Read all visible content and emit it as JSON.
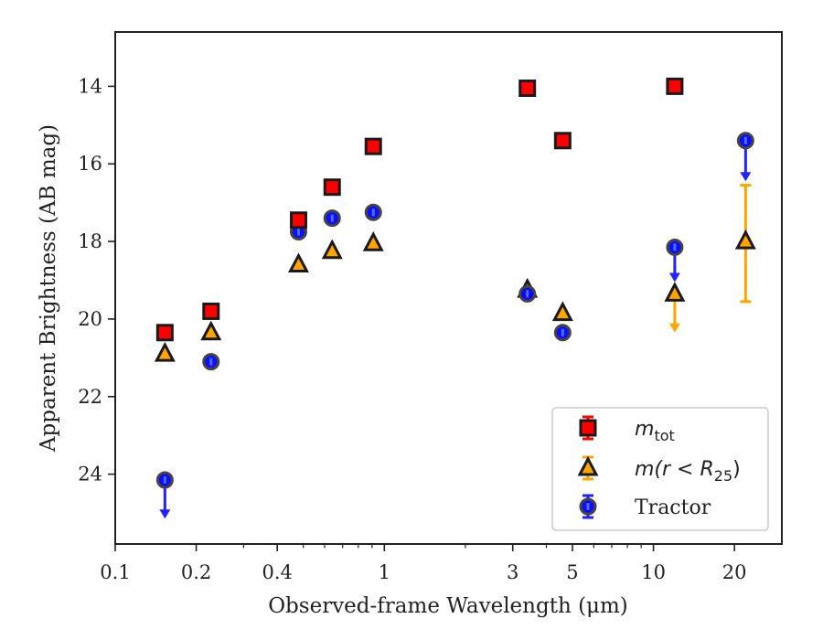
{
  "chart_data": {
    "type": "scatter",
    "xlabel": "Observed-frame Wavelength (μm)",
    "ylabel": "Apparent Brightness (AB mag)",
    "xscale": "log",
    "xlim": [
      0.1,
      30
    ],
    "ylim": [
      25.8,
      12.6
    ],
    "y_inverted": true,
    "x_ticks": [
      0.1,
      0.2,
      0.4,
      1,
      3,
      5,
      10,
      20
    ],
    "x_tick_labels": [
      "0.1",
      "0.2",
      "0.4",
      "1",
      "3",
      "5",
      "10",
      "20"
    ],
    "y_ticks": [
      14,
      16,
      18,
      20,
      22,
      24
    ],
    "y_tick_labels": [
      "14",
      "16",
      "18",
      "20",
      "22",
      "24"
    ],
    "legend_position": "lower right",
    "series": [
      {
        "name": "m_tot",
        "marker": "square",
        "color": "#ff0000",
        "edge_color": "#1a1a1a",
        "points": [
          {
            "x": 0.153,
            "y": 20.35
          },
          {
            "x": 0.227,
            "y": 19.8
          },
          {
            "x": 0.48,
            "y": 17.45
          },
          {
            "x": 0.64,
            "y": 16.6
          },
          {
            "x": 0.91,
            "y": 15.55
          },
          {
            "x": 3.4,
            "y": 14.05
          },
          {
            "x": 4.6,
            "y": 15.4
          },
          {
            "x": 12.0,
            "y": 14.0
          }
        ]
      },
      {
        "name": "m(r < R25)",
        "marker": "triangle",
        "color": "#ffa500",
        "edge_color": "#1a1a1a",
        "points": [
          {
            "x": 0.153,
            "y": 20.9
          },
          {
            "x": 0.227,
            "y": 20.35
          },
          {
            "x": 0.48,
            "y": 18.6
          },
          {
            "x": 0.64,
            "y": 18.25
          },
          {
            "x": 0.91,
            "y": 18.05
          },
          {
            "x": 3.4,
            "y": 19.25
          },
          {
            "x": 4.6,
            "y": 19.85
          },
          {
            "x": 12.0,
            "y": 19.35,
            "upper_limit": true,
            "limit_to": 20.3
          },
          {
            "x": 22.0,
            "y": 18.0,
            "err_low": 16.55,
            "err_high": 19.55
          }
        ]
      },
      {
        "name": "Tractor",
        "marker": "circle",
        "color": "#0000ff",
        "edge_color": "#444444",
        "points": [
          {
            "x": 0.153,
            "y": 24.15,
            "upper_limit": true,
            "limit_to": 25.1
          },
          {
            "x": 0.227,
            "y": 21.1
          },
          {
            "x": 0.48,
            "y": 17.75
          },
          {
            "x": 0.64,
            "y": 17.4
          },
          {
            "x": 0.91,
            "y": 17.25
          },
          {
            "x": 3.4,
            "y": 19.35
          },
          {
            "x": 4.6,
            "y": 20.35
          },
          {
            "x": 12.0,
            "y": 18.15,
            "upper_limit": true,
            "limit_to": 19.0
          },
          {
            "x": 22.0,
            "y": 15.4,
            "upper_limit": true,
            "limit_to": 16.4
          }
        ]
      }
    ]
  },
  "legend": {
    "entries": [
      {
        "label_main": "m",
        "label_sub": "tot",
        "rest": ""
      },
      {
        "label_main": "m(r < R",
        "label_sub": "25",
        "rest": ")"
      },
      {
        "label_main": "Tractor",
        "label_sub": "",
        "rest": ""
      }
    ]
  }
}
